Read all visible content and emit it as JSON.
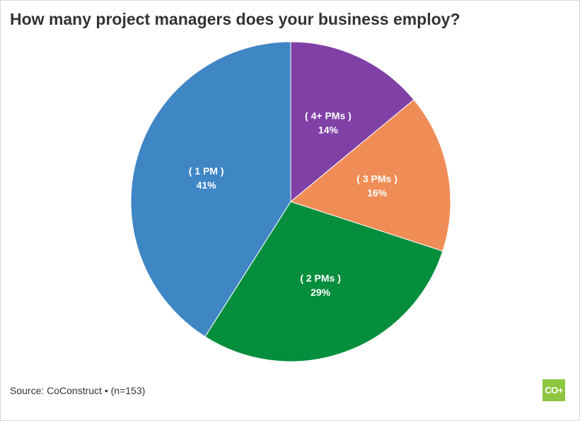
{
  "chart_data": {
    "type": "pie",
    "title": "How many project managers does your business employ?",
    "start_angle_deg": 0,
    "direction": "clockwise",
    "slices": [
      {
        "label": "( 4+ PMs )",
        "value": 14,
        "value_label": "14%",
        "color": "#8041a6"
      },
      {
        "label": "( 3 PMs )",
        "value": 16,
        "value_label": "16%",
        "color": "#f08c56"
      },
      {
        "label": "( 2 PMs )",
        "value": 29,
        "value_label": "29%",
        "color": "#058e3c"
      },
      {
        "label": "( 1 PM )",
        "value": 41,
        "value_label": "41%",
        "color": "#3f86c5"
      }
    ]
  },
  "footer": {
    "source": "Source: CoConstruct • (n=153)"
  },
  "logo": {
    "text": "CO+",
    "color": "#8dc63f"
  }
}
